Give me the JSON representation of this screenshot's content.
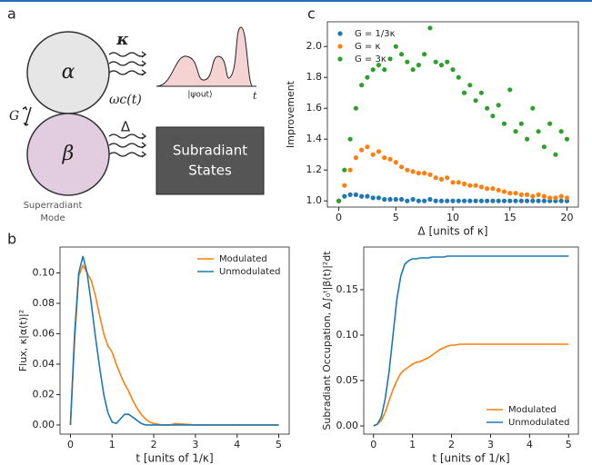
{
  "diagram": {
    "panel_label": "a",
    "alpha": "α",
    "kappa": "κ",
    "omega": "ωc(t)",
    "coupling": "G",
    "beta": "β",
    "detuning": "Δ",
    "psi": "|ψout⟩",
    "time": "t",
    "box_line1": "Subradiant",
    "box_line2": "States",
    "mode_line1": "Superradiant",
    "mode_line2": "Mode"
  },
  "chart_data": [
    {
      "type": "scatter",
      "panel_label": "c",
      "xlabel": "Δ [units of κ]",
      "ylabel": "Improvement",
      "legend": "upper left",
      "x": [
        0,
        0.5,
        1,
        1.5,
        2,
        2.5,
        3,
        3.5,
        4,
        4.5,
        5,
        5.5,
        6,
        6.5,
        7,
        7.5,
        8,
        8.5,
        9,
        9.5,
        10,
        10.5,
        11,
        11.5,
        12,
        12.5,
        13,
        13.5,
        14,
        14.5,
        15,
        15.5,
        16,
        16.5,
        17,
        17.5,
        18,
        18.5,
        19,
        19.5,
        20
      ],
      "series": [
        {
          "name": "G = 1/3κ",
          "color": "#1f77b4",
          "values": [
            1.0,
            1.03,
            1.04,
            1.04,
            1.03,
            1.03,
            1.02,
            1.02,
            1.01,
            1.01,
            1.01,
            1.01,
            1.0,
            1.01,
            1.0,
            1.0,
            1.01,
            1.0,
            1.0,
            1.0,
            1.0,
            1.0,
            1.0,
            1.0,
            1.0,
            1.0,
            1.0,
            1.0,
            1.0,
            1.0,
            1.0,
            1.0,
            1.0,
            1.0,
            1.0,
            1.0,
            1.0,
            1.0,
            1.0,
            1.0,
            1.0
          ]
        },
        {
          "name": "G = κ",
          "color": "#ff7f0e",
          "values": [
            1.0,
            1.1,
            1.2,
            1.28,
            1.33,
            1.35,
            1.3,
            1.32,
            1.28,
            1.27,
            1.25,
            1.22,
            1.2,
            1.19,
            1.18,
            1.18,
            1.17,
            1.15,
            1.14,
            1.15,
            1.12,
            1.12,
            1.11,
            1.1,
            1.1,
            1.09,
            1.08,
            1.08,
            1.07,
            1.06,
            1.05,
            1.05,
            1.04,
            1.04,
            1.03,
            1.04,
            1.03,
            1.02,
            1.02,
            1.03,
            1.02
          ]
        },
        {
          "name": "G = 3κ",
          "color": "#2ca02c",
          "values": [
            1.0,
            1.2,
            1.4,
            1.6,
            1.75,
            1.8,
            1.85,
            1.88,
            1.85,
            1.92,
            2.0,
            1.95,
            1.9,
            1.85,
            1.88,
            1.95,
            2.12,
            1.9,
            1.88,
            1.9,
            1.85,
            1.8,
            1.7,
            1.75,
            1.65,
            1.7,
            1.6,
            1.55,
            1.62,
            1.5,
            1.72,
            1.45,
            1.5,
            1.4,
            1.6,
            1.45,
            1.35,
            1.5,
            1.3,
            1.45,
            1.4
          ]
        }
      ],
      "xlim": [
        -1,
        21
      ],
      "xticks": [
        0,
        5,
        10,
        15,
        20
      ],
      "ylim": [
        0.96,
        2.16
      ],
      "yticks": [
        {
          "value": 1.0,
          "label": "1.0"
        },
        {
          "value": 1.2,
          "label": "1.2"
        },
        {
          "value": 1.4,
          "label": "1.4"
        },
        {
          "value": 1.6,
          "label": "1.6"
        },
        {
          "value": 1.8,
          "label": "1.8"
        },
        {
          "value": 2.0,
          "label": "2.0"
        }
      ]
    },
    {
      "type": "line",
      "panel_label": "b",
      "xlabel": "t [units of 1/κ]",
      "ylabel": "Flux, κ|α(t)|²",
      "legend": "upper right",
      "x": [
        0,
        0.1,
        0.2,
        0.3,
        0.4,
        0.5,
        0.6,
        0.7,
        0.8,
        0.9,
        1.0,
        1.1,
        1.2,
        1.3,
        1.4,
        1.5,
        1.6,
        1.7,
        1.8,
        1.9,
        2.0,
        2.1,
        2.2,
        2.3,
        2.4,
        2.5,
        3,
        3.5,
        4,
        4.5,
        5
      ],
      "series": [
        {
          "name": "Modulated",
          "color": "#ff7f0e",
          "values": [
            0,
            0.055,
            0.098,
            0.105,
            0.1,
            0.095,
            0.085,
            0.072,
            0.06,
            0.052,
            0.048,
            0.04,
            0.033,
            0.027,
            0.022,
            0.016,
            0.011,
            0.007,
            0.004,
            0.002,
            0.001,
            0.0005,
            0,
            0,
            0,
            0.001,
            0,
            0,
            0,
            0,
            0
          ]
        },
        {
          "name": "Unmodulated",
          "color": "#1f77b4",
          "values": [
            0,
            0.06,
            0.1,
            0.111,
            0.1,
            0.08,
            0.058,
            0.038,
            0.02,
            0.008,
            0.002,
            0.001,
            0.004,
            0.007,
            0.007,
            0.005,
            0.003,
            0.001,
            0,
            0,
            0,
            0,
            0,
            0,
            0,
            0,
            0,
            0,
            0,
            0,
            0
          ]
        }
      ],
      "xlim": [
        -0.25,
        5.25
      ],
      "xticks": [
        0,
        1,
        2,
        3,
        4,
        5
      ],
      "ylim": [
        -0.006,
        0.117
      ],
      "yticks": [
        {
          "value": 0,
          "label": "0.00"
        },
        {
          "value": 0.02,
          "label": "0.02"
        },
        {
          "value": 0.04,
          "label": "0.04"
        },
        {
          "value": 0.06,
          "label": "0.06"
        },
        {
          "value": 0.08,
          "label": "0.08"
        },
        {
          "value": 0.1,
          "label": "0.10"
        }
      ]
    },
    {
      "type": "line",
      "xlabel": "t [units of 1/κ]",
      "ylabel": "Subradiant Occupation, Δ∫₀ᵗ|β(t)|²dt",
      "legend": "lower right",
      "x": [
        0,
        0.1,
        0.2,
        0.3,
        0.4,
        0.5,
        0.6,
        0.7,
        0.8,
        0.9,
        1.0,
        1.1,
        1.2,
        1.3,
        1.4,
        1.5,
        1.6,
        1.7,
        1.8,
        1.9,
        2.0,
        2.1,
        2.2,
        2.3,
        2.4,
        2.5,
        3,
        3.5,
        4,
        4.5,
        5
      ],
      "series": [
        {
          "name": "Modulated",
          "color": "#ff7f0e",
          "values": [
            0,
            0.002,
            0.006,
            0.015,
            0.028,
            0.04,
            0.05,
            0.058,
            0.062,
            0.065,
            0.068,
            0.07,
            0.071,
            0.073,
            0.075,
            0.078,
            0.081,
            0.084,
            0.086,
            0.088,
            0.089,
            0.089,
            0.09,
            0.09,
            0.09,
            0.09,
            0.09,
            0.09,
            0.09,
            0.09,
            0.09
          ]
        },
        {
          "name": "Unmodulated",
          "color": "#1f77b4",
          "values": [
            0,
            0.002,
            0.01,
            0.03,
            0.06,
            0.1,
            0.14,
            0.165,
            0.178,
            0.182,
            0.184,
            0.184,
            0.185,
            0.185,
            0.185,
            0.186,
            0.186,
            0.186,
            0.186,
            0.187,
            0.187,
            0.187,
            0.187,
            0.187,
            0.187,
            0.187,
            0.187,
            0.187,
            0.187,
            0.187,
            0.187
          ]
        }
      ],
      "xlim": [
        -0.25,
        5.25
      ],
      "xticks": [
        0,
        1,
        2,
        3,
        4,
        5
      ],
      "ylim": [
        -0.009,
        0.197
      ],
      "yticks": [
        {
          "value": 0,
          "label": "0.00"
        },
        {
          "value": 0.05,
          "label": "0.05"
        },
        {
          "value": 0.1,
          "label": "0.10"
        },
        {
          "value": 0.15,
          "label": "0.15"
        }
      ]
    }
  ]
}
